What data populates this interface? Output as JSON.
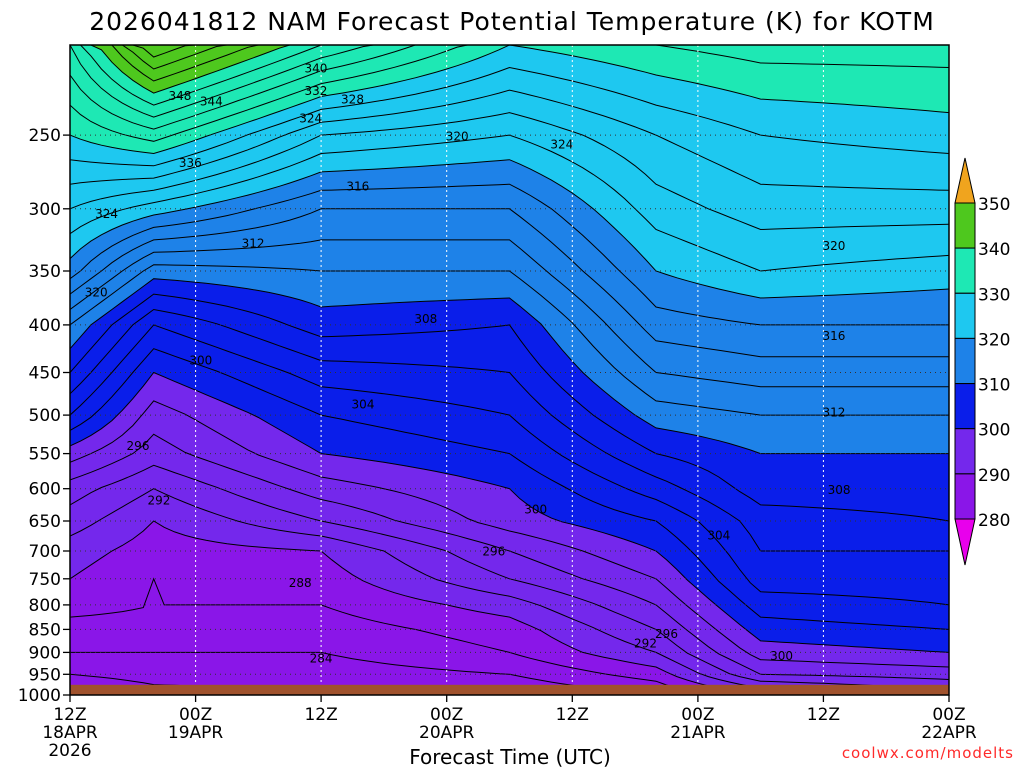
{
  "chart_data": {
    "type": "contour",
    "title": "2026041812 NAM Forecast Potential Temperature (K) for KOTM",
    "xlabel": "Forecast Time (UTC)",
    "ylabel": "",
    "x_ticks": [
      {
        "label": "12Z",
        "sub": [
          "18APR",
          "2026"
        ],
        "hours": 0
      },
      {
        "label": "00Z",
        "sub": [
          "19APR"
        ],
        "hours": 12
      },
      {
        "label": "12Z",
        "sub": [],
        "hours": 24
      },
      {
        "label": "00Z",
        "sub": [
          "20APR"
        ],
        "hours": 36
      },
      {
        "label": "12Z",
        "sub": [],
        "hours": 48
      },
      {
        "label": "00Z",
        "sub": [
          "21APR"
        ],
        "hours": 60
      },
      {
        "label": "12Z",
        "sub": [],
        "hours": 72
      },
      {
        "label": "00Z",
        "sub": [
          "22APR"
        ],
        "hours": 84
      }
    ],
    "xlim_hours": [
      0,
      84
    ],
    "y_ticks_hpa": [
      250,
      300,
      350,
      400,
      450,
      500,
      550,
      600,
      650,
      700,
      750,
      800,
      850,
      900,
      950,
      1000
    ],
    "ylim_hpa": [
      200,
      1000
    ],
    "y_scale": "log",
    "surface_pressure_hpa": 975,
    "grid": true,
    "contour_interval_k": 2,
    "shading_levels_k": [
      280,
      290,
      300,
      310,
      320,
      330,
      340,
      350
    ],
    "colorbar_labels": [
      "350",
      "340",
      "330",
      "320",
      "310",
      "300",
      "290",
      "280"
    ],
    "colors": {
      "below_280": "#e800ec",
      "280_290": "#8a16e8",
      "290_300": "#7428ec",
      "300_310": "#0a1eea",
      "310_320": "#1e82e8",
      "320_330": "#1ec8f0",
      "330_340": "#1ee8b4",
      "340_350": "#4ec81e",
      "above_350": "#f0a41e",
      "ground": "#a0522d"
    },
    "isentrope_field_k_by_hour": [
      {
        "hours": 0,
        "levels": [
          [
            1000,
            281
          ],
          [
            950,
            284
          ],
          [
            900,
            286
          ],
          [
            850,
            287
          ],
          [
            800,
            289
          ],
          [
            750,
            290
          ],
          [
            700,
            291
          ],
          [
            650,
            293
          ],
          [
            600,
            295
          ],
          [
            550,
            299
          ],
          [
            500,
            304
          ],
          [
            450,
            308
          ],
          [
            400,
            312
          ],
          [
            350,
            319
          ],
          [
            300,
            324
          ],
          [
            250,
            330
          ],
          [
            200,
            336
          ]
        ]
      },
      {
        "hours": 8,
        "levels": [
          [
            1000,
            283
          ],
          [
            950,
            285
          ],
          [
            900,
            286
          ],
          [
            850,
            287
          ],
          [
            800,
            288
          ],
          [
            750,
            288
          ],
          [
            700,
            289
          ],
          [
            650,
            290
          ],
          [
            600,
            292
          ],
          [
            550,
            295
          ],
          [
            500,
            297
          ],
          [
            450,
            300
          ],
          [
            400,
            304
          ],
          [
            350,
            311
          ],
          [
            300,
            321
          ],
          [
            250,
            333
          ],
          [
            200,
            348
          ]
        ]
      },
      {
        "hours": 24,
        "levels": [
          [
            1000,
            284
          ],
          [
            950,
            285
          ],
          [
            900,
            286
          ],
          [
            850,
            287
          ],
          [
            800,
            288
          ],
          [
            750,
            289
          ],
          [
            700,
            290
          ],
          [
            650,
            294
          ],
          [
            600,
            297
          ],
          [
            550,
            300
          ],
          [
            500,
            302
          ],
          [
            450,
            305
          ],
          [
            400,
            309
          ],
          [
            350,
            312
          ],
          [
            300,
            316
          ],
          [
            250,
            324
          ],
          [
            200,
            338
          ]
        ]
      },
      {
        "hours": 42,
        "levels": [
          [
            1000,
            284
          ],
          [
            950,
            286
          ],
          [
            900,
            288
          ],
          [
            850,
            289
          ],
          [
            800,
            291
          ],
          [
            750,
            294
          ],
          [
            700,
            296
          ],
          [
            650,
            299
          ],
          [
            600,
            300
          ],
          [
            550,
            302
          ],
          [
            500,
            304
          ],
          [
            450,
            306
          ],
          [
            400,
            308
          ],
          [
            350,
            312
          ],
          [
            300,
            316
          ],
          [
            250,
            322
          ],
          [
            200,
            330
          ]
        ]
      },
      {
        "hours": 56,
        "levels": [
          [
            1000,
            286
          ],
          [
            950,
            289
          ],
          [
            900,
            292
          ],
          [
            850,
            294
          ],
          [
            800,
            296
          ],
          [
            750,
            298
          ],
          [
            700,
            300
          ],
          [
            650,
            302
          ],
          [
            600,
            305
          ],
          [
            550,
            308
          ],
          [
            500,
            311
          ],
          [
            450,
            314
          ],
          [
            400,
            317
          ],
          [
            350,
            320
          ],
          [
            300,
            323
          ],
          [
            250,
            326
          ],
          [
            200,
            332
          ]
        ]
      },
      {
        "hours": 66,
        "levels": [
          [
            1000,
            290
          ],
          [
            950,
            296
          ],
          [
            900,
            299
          ],
          [
            850,
            301
          ],
          [
            800,
            303
          ],
          [
            750,
            305
          ],
          [
            700,
            306
          ],
          [
            650,
            307
          ],
          [
            600,
            309
          ],
          [
            550,
            310
          ],
          [
            500,
            312
          ],
          [
            450,
            315
          ],
          [
            400,
            318
          ],
          [
            350,
            322
          ],
          [
            300,
            325
          ],
          [
            250,
            328
          ],
          [
            200,
            333
          ]
        ]
      },
      {
        "hours": 84,
        "levels": [
          [
            1000,
            293
          ],
          [
            950,
            297
          ],
          [
            900,
            300
          ],
          [
            850,
            302
          ],
          [
            800,
            304
          ],
          [
            750,
            305
          ],
          [
            700,
            306
          ],
          [
            650,
            308
          ],
          [
            600,
            309
          ],
          [
            550,
            310
          ],
          [
            500,
            312
          ],
          [
            450,
            315
          ],
          [
            400,
            318
          ],
          [
            350,
            321
          ],
          [
            300,
            325
          ],
          [
            250,
            329
          ],
          [
            200,
            333
          ]
        ]
      }
    ],
    "contour_labels": [
      {
        "text": "340",
        "hours": 23.5,
        "hpa": 212
      },
      {
        "text": "348",
        "hours": 10.5,
        "hpa": 227
      },
      {
        "text": "344",
        "hours": 13.5,
        "hpa": 230
      },
      {
        "text": "332",
        "hours": 23.5,
        "hpa": 224
      },
      {
        "text": "328",
        "hours": 27,
        "hpa": 229
      },
      {
        "text": "324",
        "hours": 23,
        "hpa": 240
      },
      {
        "text": "320",
        "hours": 37,
        "hpa": 251
      },
      {
        "text": "324",
        "hours": 47,
        "hpa": 256
      },
      {
        "text": "336",
        "hours": 11.5,
        "hpa": 268
      },
      {
        "text": "316",
        "hours": 27.5,
        "hpa": 284
      },
      {
        "text": "324",
        "hours": 3.5,
        "hpa": 304
      },
      {
        "text": "312",
        "hours": 17.5,
        "hpa": 327
      },
      {
        "text": "320",
        "hours": 73,
        "hpa": 329
      },
      {
        "text": "320",
        "hours": 2.5,
        "hpa": 369
      },
      {
        "text": "308",
        "hours": 34,
        "hpa": 394
      },
      {
        "text": "316",
        "hours": 73,
        "hpa": 411
      },
      {
        "text": "300",
        "hours": 12.5,
        "hpa": 437
      },
      {
        "text": "304",
        "hours": 28,
        "hpa": 487
      },
      {
        "text": "312",
        "hours": 73,
        "hpa": 497
      },
      {
        "text": "296",
        "hours": 6.5,
        "hpa": 540
      },
      {
        "text": "308",
        "hours": 73.5,
        "hpa": 602
      },
      {
        "text": "292",
        "hours": 8.5,
        "hpa": 618
      },
      {
        "text": "300",
        "hours": 44.5,
        "hpa": 632
      },
      {
        "text": "304",
        "hours": 62,
        "hpa": 674
      },
      {
        "text": "296",
        "hours": 40.5,
        "hpa": 701
      },
      {
        "text": "288",
        "hours": 22,
        "hpa": 758
      },
      {
        "text": "296",
        "hours": 57,
        "hpa": 860
      },
      {
        "text": "292",
        "hours": 55,
        "hpa": 880
      },
      {
        "text": "284",
        "hours": 24,
        "hpa": 914
      },
      {
        "text": "300",
        "hours": 68,
        "hpa": 908
      }
    ]
  },
  "credit": "coolwx.com/modelts"
}
